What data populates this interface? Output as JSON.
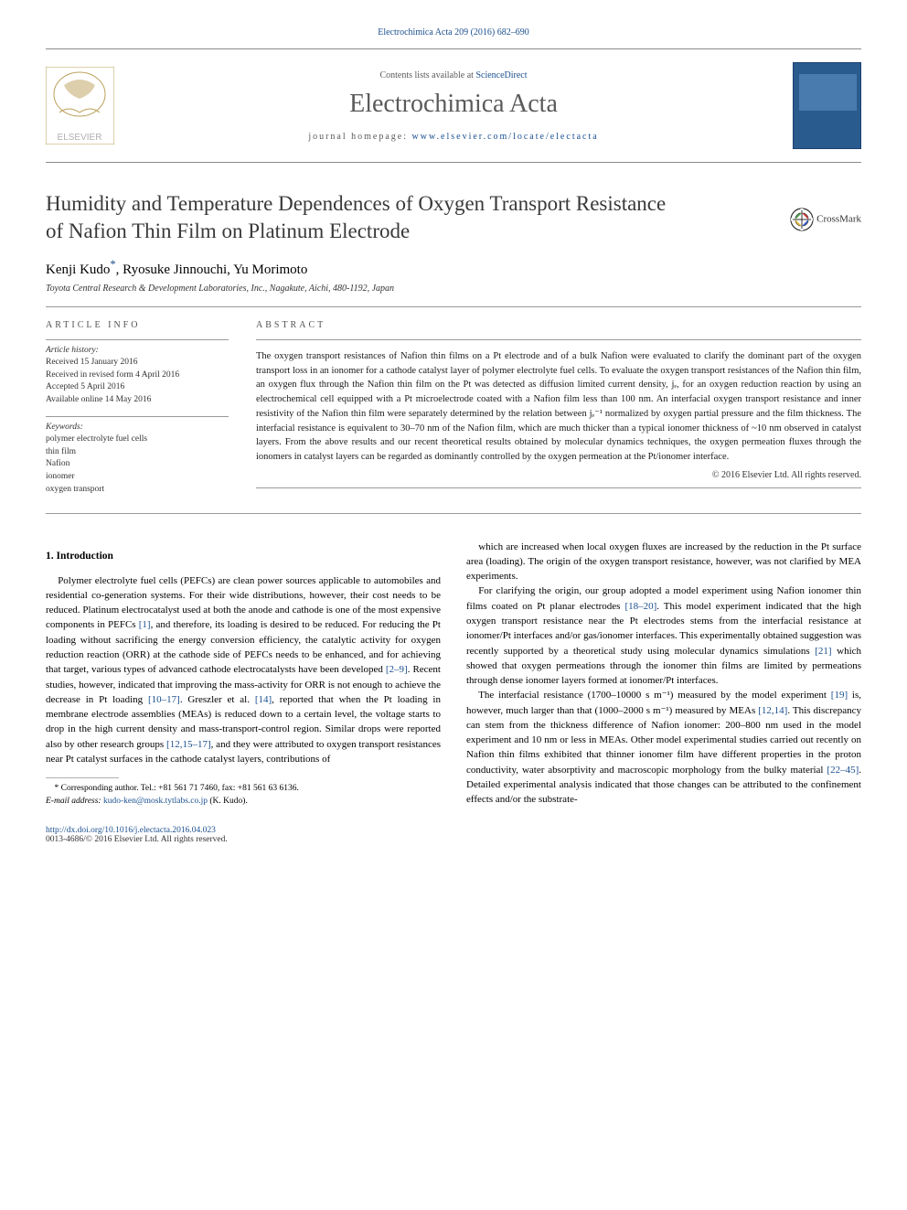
{
  "header": {
    "citation_link": "Electrochimica Acta 209 (2016) 682–690",
    "contents_prefix": "Contents lists available at ",
    "contents_link": "ScienceDirect",
    "journal_name": "Electrochimica Acta",
    "homepage_prefix": "journal homepage: ",
    "homepage_url": "www.elsevier.com/locate/electacta",
    "elsevier_label": "ELSEVIER"
  },
  "title": "Humidity and Temperature Dependences of Oxygen Transport Resistance of Nafion Thin Film on Platinum Electrode",
  "crossmark": "CrossMark",
  "authors": {
    "line_html": "Kenji Kudo<sup class=\"corr\">*</sup>, Ryosuke Jinnouchi, Yu Morimoto"
  },
  "affiliation": "Toyota Central Research & Development Laboratories, Inc., Nagakute, Aichi, 480-1192, Japan",
  "article_info": {
    "heading": "ARTICLE INFO",
    "history_heading": "Article history:",
    "history": "Received 15 January 2016\nReceived in revised form 4 April 2016\nAccepted 5 April 2016\nAvailable online 14 May 2016",
    "keywords_heading": "Keywords:",
    "keywords": "polymer electrolyte fuel cells\nthin film\nNafion\nionomer\noxygen transport"
  },
  "abstract": {
    "heading": "ABSTRACT",
    "text": "The oxygen transport resistances of Nafion thin films on a Pt electrode and of a bulk Nafion were evaluated to clarify the dominant part of the oxygen transport loss in an ionomer for a cathode catalyst layer of polymer electrolyte fuel cells. To evaluate the oxygen transport resistances of the Nafion thin film, an oxygen flux through the Nafion thin film on the Pt was detected as diffusion limited current density, jₑ, for an oxygen reduction reaction by using an electrochemical cell equipped with a Pt microelectrode coated with a Nafion film less than 100 nm. An interfacial oxygen transport resistance and inner resistivity of the Nafion thin film were separately determined by the relation between jₑ⁻¹ normalized by oxygen partial pressure and the film thickness. The interfacial resistance is equivalent to 30–70 nm of the Nafion film, which are much thicker than a typical ionomer thickness of ~10 nm observed in catalyst layers. From the above results and our recent theoretical results obtained by molecular dynamics techniques, the oxygen permeation fluxes through the ionomers in catalyst layers can be regarded as dominantly controlled by the oxygen permeation at the Pt/ionomer interface.",
    "copyright": "© 2016 Elsevier Ltd. All rights reserved."
  },
  "body": {
    "section1_heading": "1. Introduction",
    "p1": "Polymer electrolyte fuel cells (PEFCs) are clean power sources applicable to automobiles and residential co-generation systems. For their wide distributions, however, their cost needs to be reduced. Platinum electrocatalyst used at both the anode and cathode is one of the most expensive components in PEFCs [1], and therefore, its loading is desired to be reduced. For reducing the Pt loading without sacrificing the energy conversion efficiency, the catalytic activity for oxygen reduction reaction (ORR) at the cathode side of PEFCs needs to be enhanced, and for achieving that target, various types of advanced cathode electrocatalysts have been developed [2–9]. Recent studies, however, indicated that improving the mass-activity for ORR is not enough to achieve the decrease in Pt loading [10–17]. Greszler et al. [14], reported that when the Pt loading in membrane electrode assemblies (MEAs) is reduced down to a certain level, the voltage starts to drop in the high current density and mass-transport-control region. Similar drops were reported also by other research groups [12,15–17], and they were attributed to oxygen transport resistances near Pt catalyst surfaces in the cathode catalyst layers, contributions of",
    "p2": "which are increased when local oxygen fluxes are increased by the reduction in the Pt surface area (loading). The origin of the oxygen transport resistance, however, was not clarified by MEA experiments.",
    "p3": "For clarifying the origin, our group adopted a model experiment using Nafion ionomer thin films coated on Pt planar electrodes [18–20]. This model experiment indicated that the high oxygen transport resistance near the Pt electrodes stems from the interfacial resistance at ionomer/Pt interfaces and/or gas/ionomer interfaces. This experimentally obtained suggestion was recently supported by a theoretical study using molecular dynamics simulations [21] which showed that oxygen permeations through the ionomer thin films are limited by permeations through dense ionomer layers formed at ionomer/Pt interfaces.",
    "p4": "The interfacial resistance (1700–10000 s m⁻¹) measured by the model experiment [19] is, however, much larger than that (1000–2000 s m⁻¹) measured by MEAs [12,14]. This discrepancy can stem from the thickness difference of Nafion ionomer: 200–800 nm used in the model experiment and 10 nm or less in MEAs. Other model experimental studies carried out recently on Nafion thin films exhibited that thinner ionomer film have different properties in the proton conductivity, water absorptivity and macroscopic morphology from the bulky material [22–45]. Detailed experimental analysis indicated that those changes can be attributed to the confinement effects and/or the substrate-"
  },
  "footnote": {
    "corr": "* Corresponding author. Tel.: +81 561 71 7460, fax: +81 561 63 6136.",
    "email_label": "E-mail address:",
    "email": "kudo-ken@mosk.tytlabs.co.jp",
    "email_name": "(K. Kudo)."
  },
  "footer": {
    "doi": "http://dx.doi.org/10.1016/j.electacta.2016.04.023",
    "issn_copyright": "0013-4686/© 2016 Elsevier Ltd. All rights reserved."
  },
  "colors": {
    "link": "#1a4f8f",
    "rule": "#9a9a9a",
    "text_light": "#5a5a5a",
    "cover_bg": "#2a5b8f"
  }
}
